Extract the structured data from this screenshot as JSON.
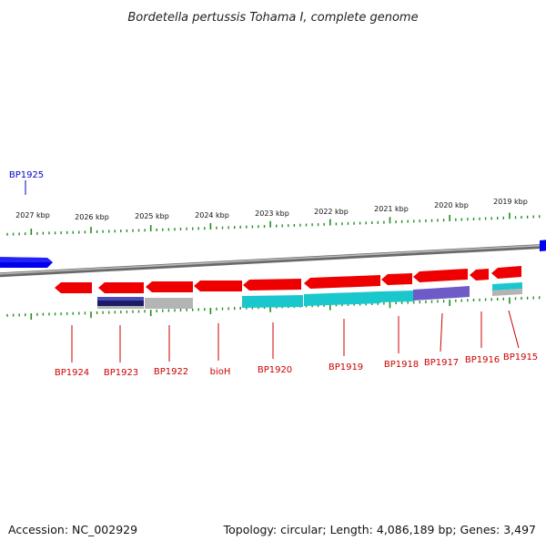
{
  "title": "Bordetella pertussis Tohama I, complete genome",
  "footer": {
    "accession": "Accession: NC_002929",
    "summary": "Topology: circular; Length: 4,086,189 bp; Genes: 3,497"
  },
  "colors": {
    "gene_red": "#ee0000",
    "gene_blue": "#0000ee",
    "ruler": "#9a9a9a",
    "tick": "#228b22",
    "label_red": "#cc0000",
    "label_blue": "#0000cc",
    "cyan": "#19c7cc",
    "navy": "#1c1c66",
    "purple": "#6f5bc8",
    "gray": "#b4b4b4"
  },
  "scale": {
    "ticks": [
      {
        "label": "2027 kbp"
      },
      {
        "label": "2026 kbp"
      },
      {
        "label": "2025 kbp"
      },
      {
        "label": "2024 kbp"
      },
      {
        "label": "2023 kbp"
      },
      {
        "label": "2022 kbp"
      },
      {
        "label": "2021 kbp"
      },
      {
        "label": "2020 kbp"
      },
      {
        "label": "2019 kbp"
      }
    ]
  },
  "genes": [
    {
      "name": "BP1925",
      "strand": "outer",
      "color": "blue"
    },
    {
      "name": "BP1924",
      "strand": "inner",
      "color": "red"
    },
    {
      "name": "BP1923",
      "strand": "inner",
      "color": "red"
    },
    {
      "name": "BP1922",
      "strand": "inner",
      "color": "red"
    },
    {
      "name": "bioH",
      "strand": "inner",
      "color": "red"
    },
    {
      "name": "BP1920",
      "strand": "inner",
      "color": "red"
    },
    {
      "name": "BP1919",
      "strand": "inner",
      "color": "red"
    },
    {
      "name": "BP1918",
      "strand": "inner",
      "color": "red"
    },
    {
      "name": "BP1917",
      "strand": "inner",
      "color": "red"
    },
    {
      "name": "BP1916",
      "strand": "inner",
      "color": "red"
    },
    {
      "name": "BP1915",
      "strand": "inner",
      "color": "red"
    }
  ]
}
